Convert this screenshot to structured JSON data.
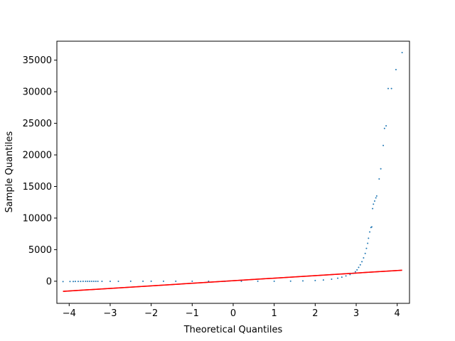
{
  "chart_data": {
    "type": "scatter",
    "xlabel": "Theoretical Quantiles",
    "ylabel": "Sample Quantiles",
    "xlim": [
      -4.3,
      4.3
    ],
    "ylim": [
      -3500,
      38000
    ],
    "xticks": [
      -4,
      -3,
      -2,
      -1,
      0,
      1,
      2,
      3,
      4
    ],
    "yticks": [
      0,
      5000,
      10000,
      15000,
      20000,
      25000,
      30000,
      35000
    ],
    "x_tick_labels": [
      "−4",
      "−3",
      "−2",
      "−1",
      "0",
      "1",
      "2",
      "3",
      "4"
    ],
    "y_tick_labels": [
      "0",
      "5000",
      "10000",
      "15000",
      "20000",
      "25000",
      "30000",
      "35000"
    ],
    "grid": false,
    "colors": {
      "points": "#1f77b4",
      "reference_line": "#ff0000",
      "axes": "#000000"
    },
    "reference_line": {
      "x": [
        -4.15,
        4.12
      ],
      "y": [
        -1600,
        1750
      ]
    },
    "points": {
      "x": [
        -4.15,
        -3.98,
        -3.9,
        -3.85,
        -3.78,
        -3.72,
        -3.66,
        -3.6,
        -3.55,
        -3.5,
        -3.45,
        -3.4,
        -3.35,
        -3.3,
        -3.2,
        -3.0,
        -2.8,
        -2.5,
        -2.2,
        -2.0,
        -1.7,
        -1.4,
        -1.0,
        -0.6,
        -0.2,
        0.2,
        0.6,
        1.0,
        1.4,
        1.7,
        2.0,
        2.2,
        2.4,
        2.55,
        2.65,
        2.75,
        2.85,
        2.92,
        2.98,
        3.02,
        3.06,
        3.1,
        3.14,
        3.18,
        3.22,
        3.25,
        3.28,
        3.3,
        3.33,
        3.36,
        3.38,
        3.4,
        3.42,
        3.45,
        3.48,
        3.5,
        3.56,
        3.6,
        3.66,
        3.69,
        3.73,
        3.78,
        3.86,
        3.97,
        4.12
      ],
      "y": [
        -50,
        -40,
        -35,
        -30,
        -25,
        -22,
        -20,
        -18,
        -16,
        -15,
        -14,
        -12,
        -11,
        -10,
        -9,
        -8,
        -7,
        -6,
        -5,
        -5,
        -4,
        -4,
        -3,
        -2,
        -1,
        0,
        1,
        5,
        20,
        60,
        120,
        200,
        320,
        480,
        650,
        850,
        1050,
        1250,
        1500,
        1800,
        2200,
        2600,
        3100,
        3700,
        4400,
        5200,
        6000,
        6800,
        7800,
        8500,
        8600,
        11500,
        12200,
        12700,
        13200,
        13500,
        16200,
        17800,
        21500,
        24200,
        24600,
        30500,
        30500,
        33500,
        36200
      ]
    }
  }
}
